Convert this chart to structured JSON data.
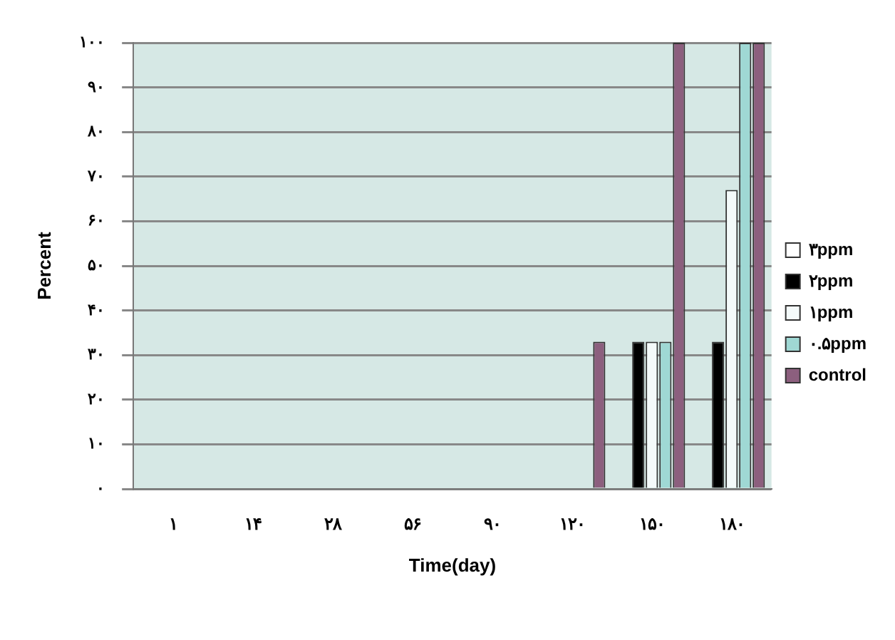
{
  "chart_data": {
    "type": "bar",
    "xlabel": "Time(day)",
    "ylabel": "Percent",
    "categories": [
      "۱",
      "۱۴",
      "۲۸",
      "۵۶",
      "۹۰",
      "۱۲۰",
      "۱۵۰",
      "۱۸۰"
    ],
    "series": [
      {
        "name": "۳ppm",
        "color": "#ffffff",
        "values": [
          0,
          0,
          0,
          0,
          0,
          0,
          0,
          0
        ]
      },
      {
        "name": "۲ppm",
        "color": "#000000",
        "values": [
          0,
          0,
          0,
          0,
          0,
          0,
          33,
          33
        ]
      },
      {
        "name": "۱ppm",
        "color": "#f4fafa",
        "values": [
          0,
          0,
          0,
          0,
          0,
          0,
          33,
          67
        ]
      },
      {
        "name": "۰.۵ppm",
        "color": "#9fd8d4",
        "values": [
          0,
          0,
          0,
          0,
          0,
          0,
          33,
          100
        ]
      },
      {
        "name": "control",
        "color": "#8c5f7e",
        "values": [
          0,
          0,
          0,
          0,
          0,
          33,
          100,
          100
        ]
      }
    ],
    "ylim": [
      0,
      100
    ],
    "yticks": [
      {
        "value": 0,
        "label": "۰"
      },
      {
        "value": 10,
        "label": "۱۰"
      },
      {
        "value": 20,
        "label": "۲۰"
      },
      {
        "value": 30,
        "label": "۳۰"
      },
      {
        "value": 40,
        "label": "۴۰"
      },
      {
        "value": 50,
        "label": "۵۰"
      },
      {
        "value": 60,
        "label": "۶۰"
      },
      {
        "value": 70,
        "label": "۷۰"
      },
      {
        "value": 80,
        "label": "۸۰"
      },
      {
        "value": 90,
        "label": "۹۰"
      },
      {
        "value": 100,
        "label": "۱۰۰"
      }
    ],
    "grid": "y",
    "legend": "right"
  }
}
